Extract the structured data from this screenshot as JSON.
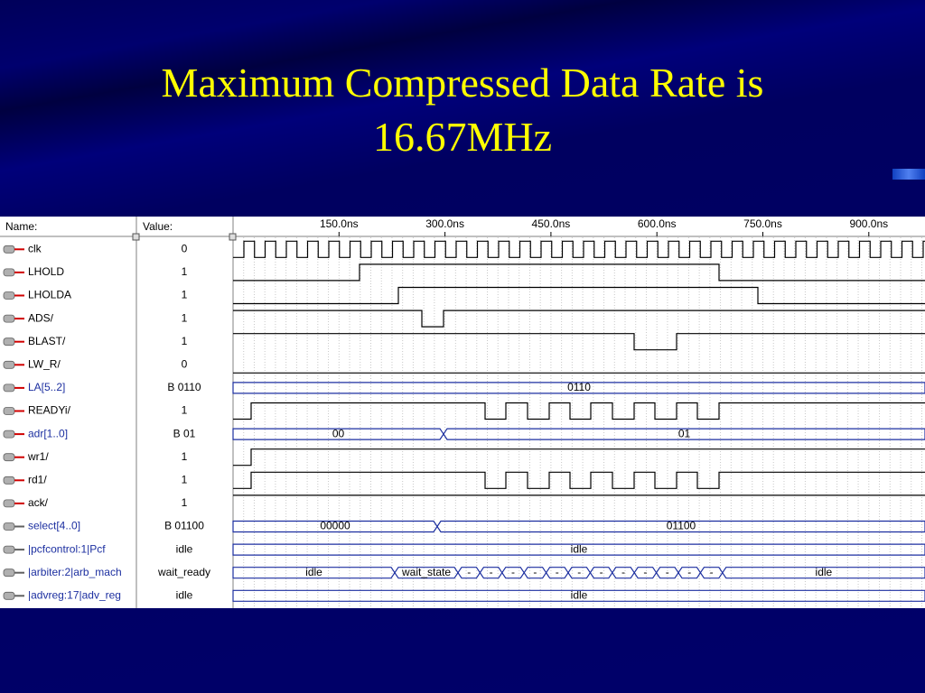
{
  "title_lines": [
    "Maximum Compressed Data Rate is",
    "16.67MHz"
  ],
  "waveform_window": {
    "headers": {
      "name": "Name:",
      "value": "Value:"
    },
    "time_ticks": [
      "150.0ns",
      "300.0ns",
      "450.0ns",
      "600.0ns",
      "750.0ns",
      "900.0ns"
    ],
    "signals": [
      {
        "name": "clk",
        "value": "0"
      },
      {
        "name": "LHOLD",
        "value": "1"
      },
      {
        "name": "LHOLDA",
        "value": "1"
      },
      {
        "name": "ADS/",
        "value": "1"
      },
      {
        "name": "BLAST/",
        "value": "1"
      },
      {
        "name": "LW_R/",
        "value": "0"
      },
      {
        "name": "LA[5..2]",
        "value": "B 0110",
        "segments": [
          "0110"
        ]
      },
      {
        "name": "READYi/",
        "value": "1"
      },
      {
        "name": "adr[1..0]",
        "value": "B 01",
        "segments": [
          "00",
          "01"
        ]
      },
      {
        "name": "wr1/",
        "value": "1"
      },
      {
        "name": "rd1/",
        "value": "1"
      },
      {
        "name": "ack/",
        "value": "1"
      },
      {
        "name": "select[4..0]",
        "value": "B 01100",
        "segments": [
          "00000",
          "01100"
        ]
      },
      {
        "name": "|pcfcontrol:1|Pcf",
        "value": "idle",
        "segments": [
          "idle"
        ]
      },
      {
        "name": "|arbiter:2|arb_mach",
        "value": "wait_ready",
        "segments": [
          "idle",
          "wait_state",
          "-",
          "-",
          "-",
          "-",
          "-",
          "-",
          "-",
          "-",
          "-",
          "-",
          "-",
          "-",
          "idle"
        ]
      },
      {
        "name": "|advreg:17|adv_reg",
        "value": "idle",
        "segments": [
          "idle"
        ]
      }
    ]
  }
}
